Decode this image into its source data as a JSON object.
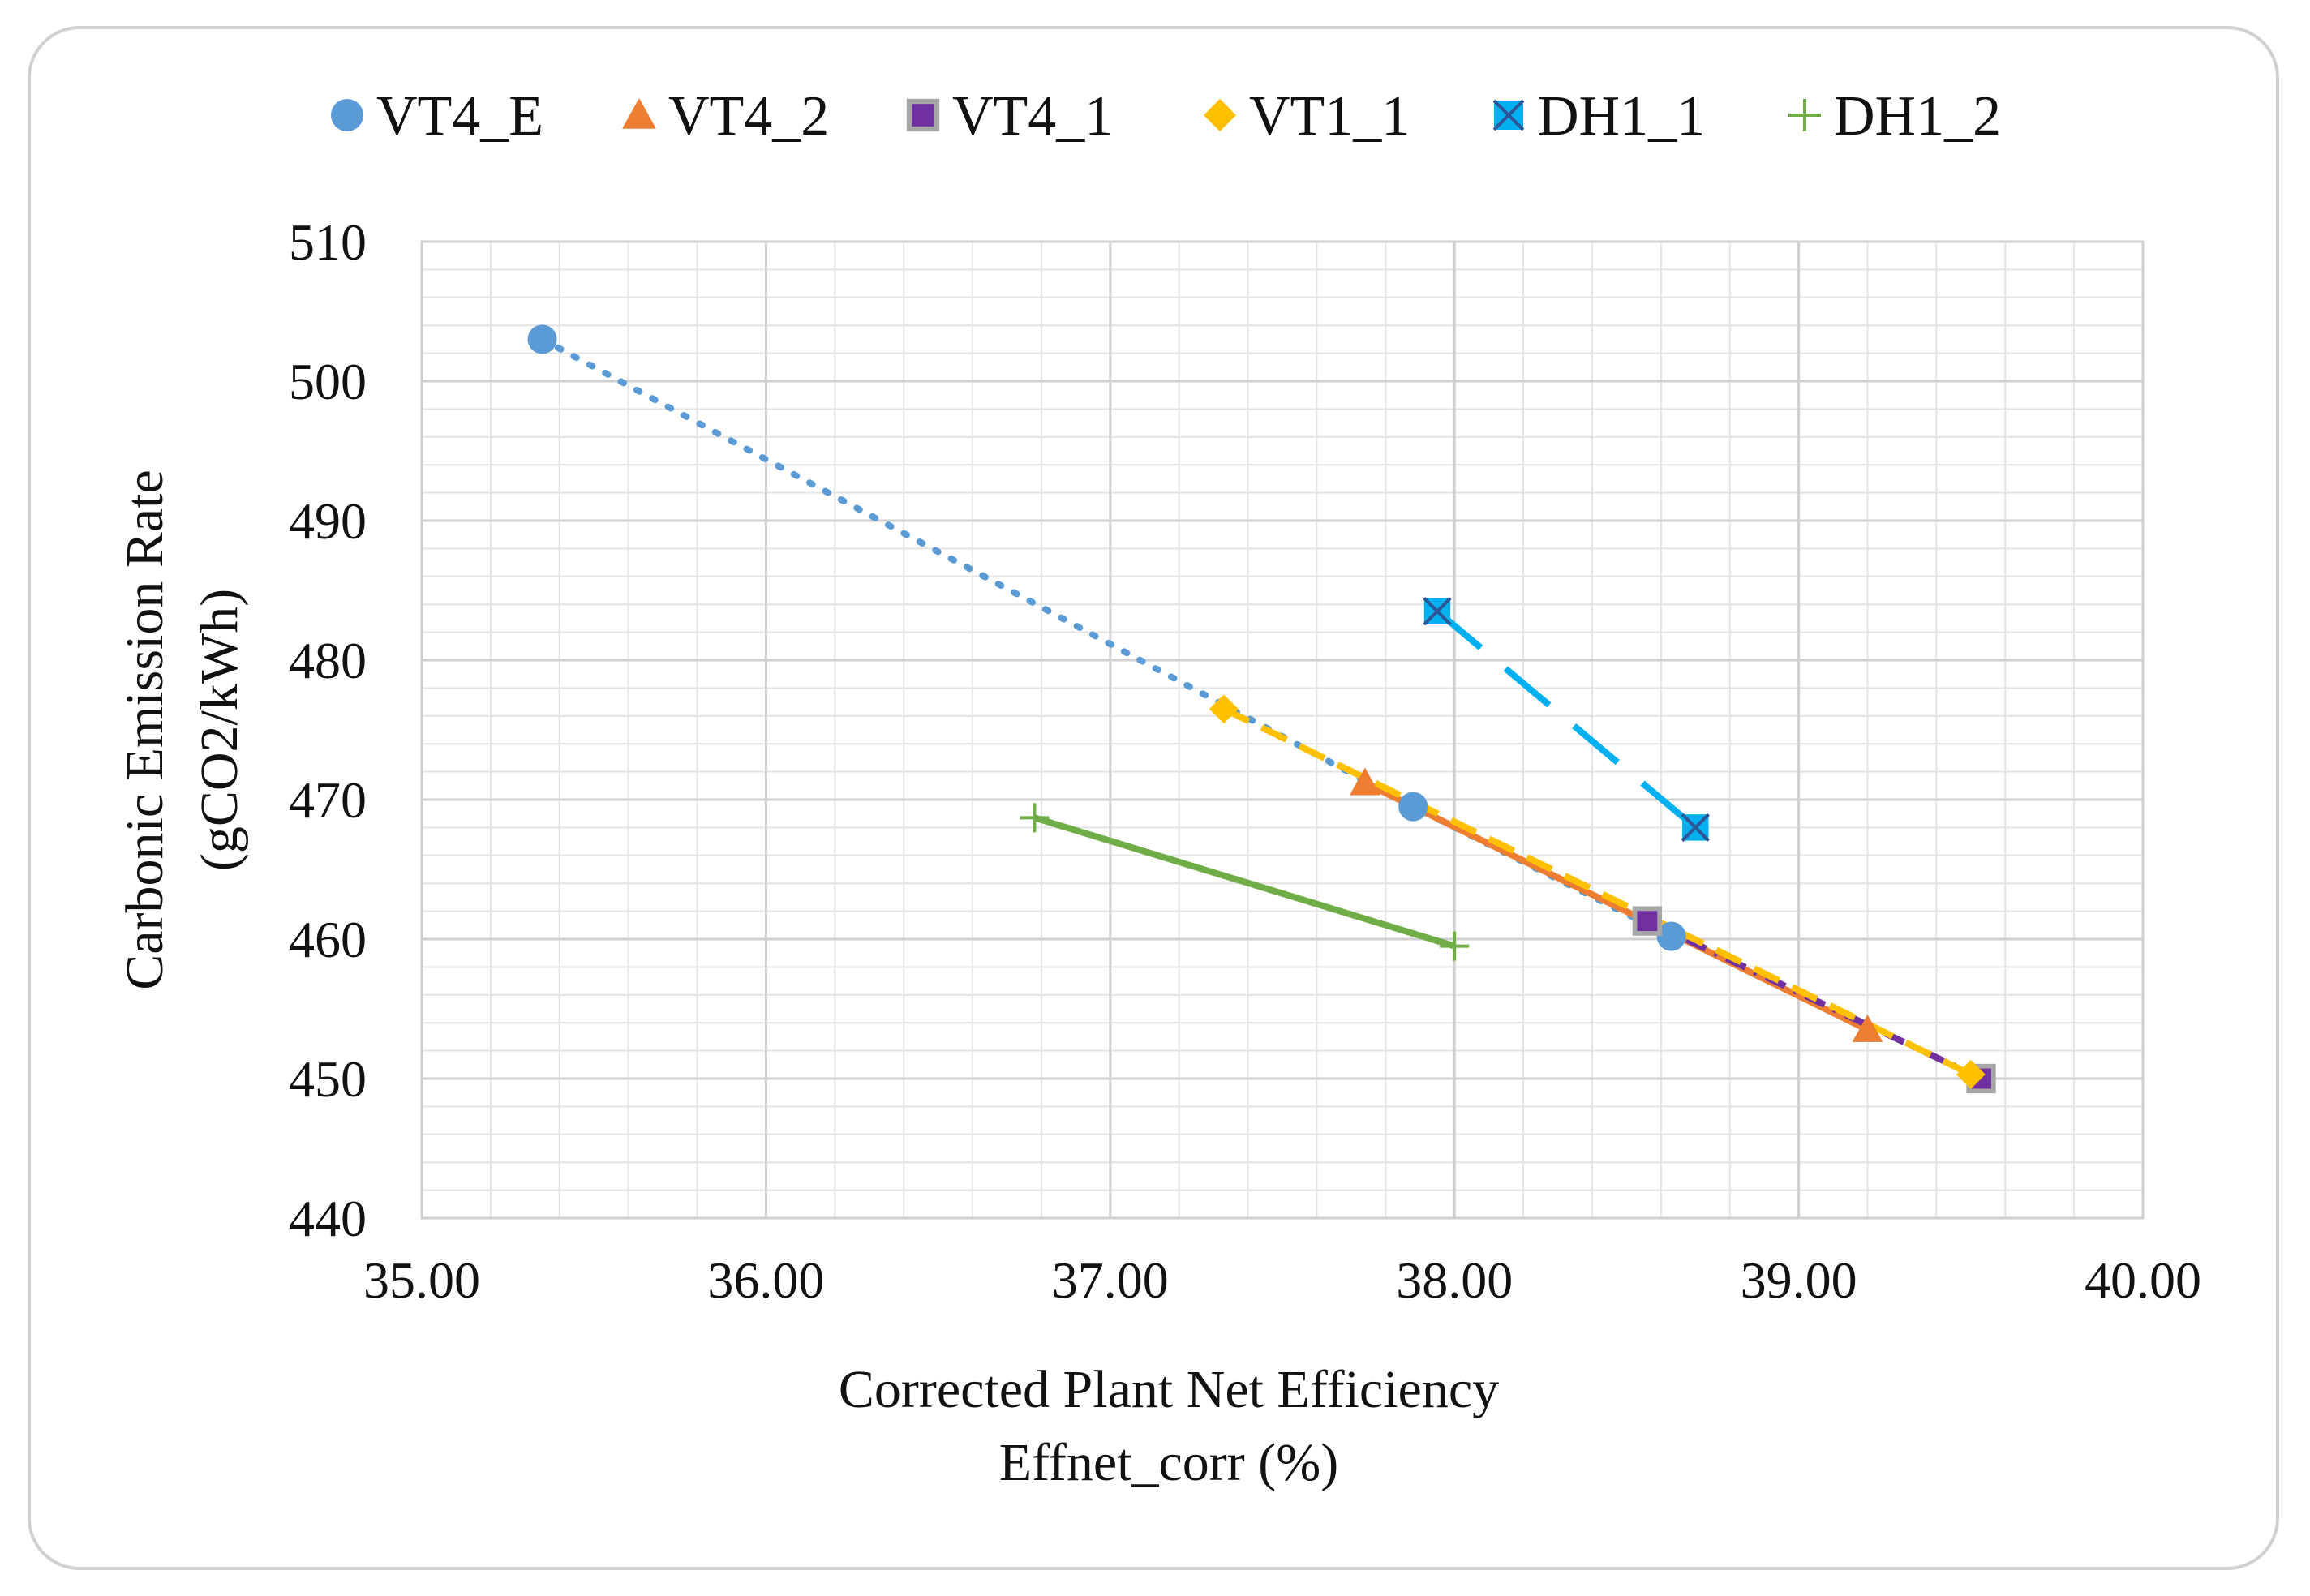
{
  "chart_data": {
    "type": "scatter",
    "title": "",
    "xlabel": "Corrected Plant Net Efficiency",
    "xlabel_line2": "Effnet_corr (%)",
    "ylabel": "Carbonic Emission Rate",
    "ylabel_line2": "(gCO2/kWh)",
    "xlim": [
      35.0,
      40.0
    ],
    "ylim": [
      440,
      510
    ],
    "x_major_step": 1.0,
    "x_minor_step": 0.2,
    "y_major_step": 10,
    "y_minor_step": 2,
    "grid": true,
    "legend_position": "top",
    "x_tick_labels": [
      "35.00",
      "36.00",
      "37.00",
      "38.00",
      "39.00",
      "40.00"
    ],
    "y_tick_labels": [
      "440",
      "450",
      "460",
      "470",
      "480",
      "490",
      "500",
      "510"
    ],
    "series": [
      {
        "name": "VT4_E",
        "marker": "circle",
        "color": "#5b9bd5",
        "line": "dotted",
        "points": [
          [
            35.35,
            503.0
          ],
          [
            37.88,
            469.5
          ],
          [
            38.63,
            460.2
          ]
        ]
      },
      {
        "name": "VT4_2",
        "marker": "triangle",
        "color": "#ed7d31",
        "line": "solid",
        "points": [
          [
            37.74,
            471.2
          ],
          [
            39.2,
            453.5
          ]
        ]
      },
      {
        "name": "VT4_1",
        "marker": "square",
        "color": "#7030a0",
        "line": "dash-dot",
        "points": [
          [
            38.56,
            461.3
          ],
          [
            39.53,
            450.0
          ]
        ]
      },
      {
        "name": "VT1_1",
        "marker": "diamond",
        "color": "#ffc000",
        "line": "dashed",
        "points": [
          [
            37.33,
            476.5
          ],
          [
            39.5,
            450.3
          ]
        ]
      },
      {
        "name": "DH1_1",
        "marker": "square-x",
        "color": "#00b0f0",
        "line": "long-dash",
        "points": [
          [
            37.95,
            483.5
          ],
          [
            38.7,
            468.0
          ]
        ]
      },
      {
        "name": "DH1_2",
        "marker": "plus",
        "color": "#70ad47",
        "line": "solid",
        "points": [
          [
            36.78,
            468.7
          ],
          [
            38.0,
            459.5
          ]
        ]
      }
    ]
  }
}
